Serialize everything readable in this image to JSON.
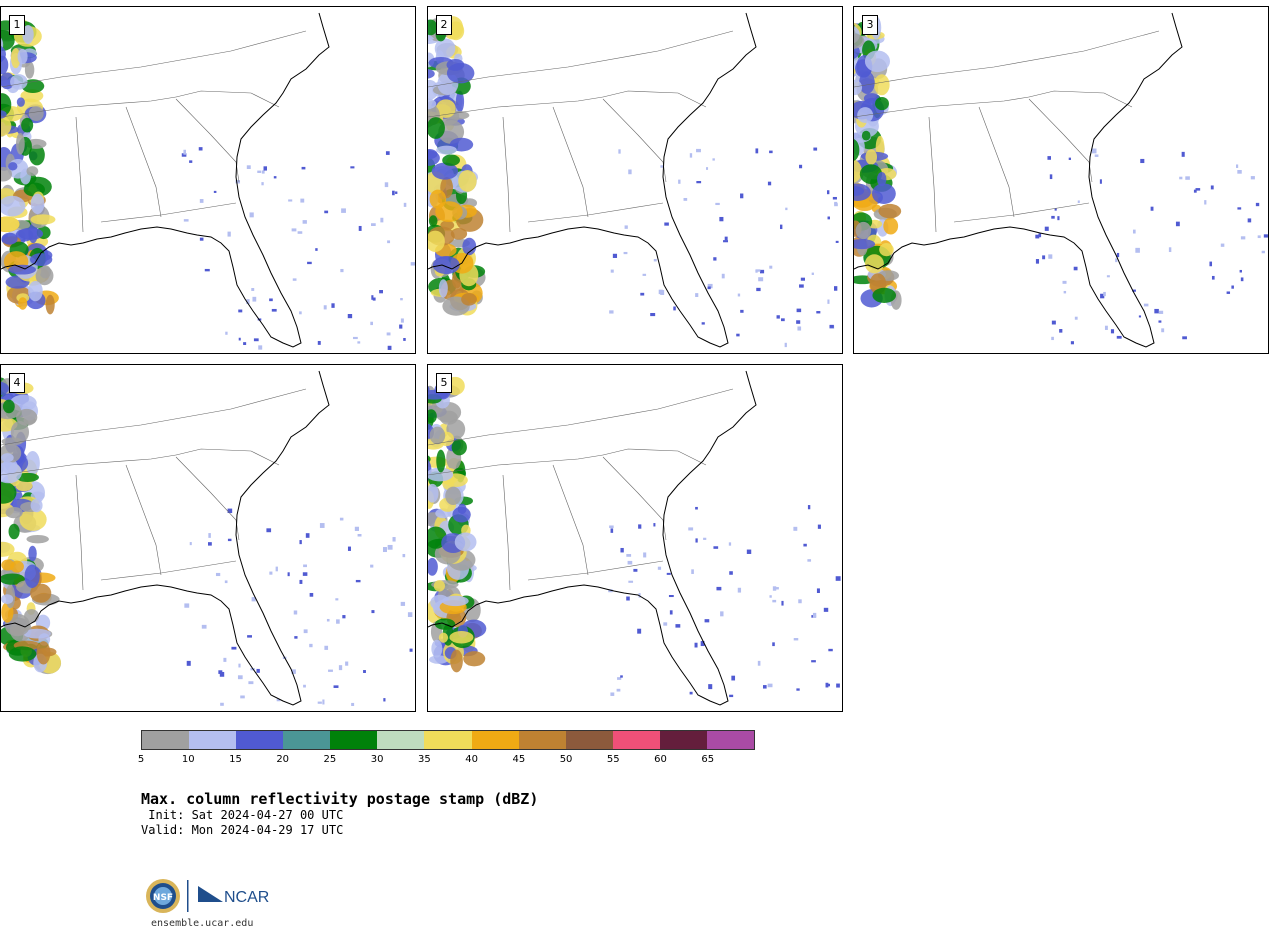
{
  "panels": [
    {
      "label": "1"
    },
    {
      "label": "2"
    },
    {
      "label": "3"
    },
    {
      "label": "4"
    },
    {
      "label": "5"
    }
  ],
  "colorbar": {
    "colors": [
      "#a0a0a0",
      "#b4bef0",
      "#505ad2",
      "#4b9696",
      "#00820a",
      "#bedcbe",
      "#f0dc5a",
      "#f0aa14",
      "#be8232",
      "#8c5a3c",
      "#f05078",
      "#641e3c",
      "#aa4ba5"
    ],
    "ticks": [
      "5",
      "10",
      "15",
      "20",
      "25",
      "30",
      "35",
      "40",
      "45",
      "50",
      "55",
      "60",
      "65"
    ]
  },
  "title": {
    "main": "Max. column reflectivity postage stamp (dBZ)",
    "init": " Init: Sat 2024-04-27 00 UTC",
    "valid": "Valid: Mon 2024-04-29 17 UTC"
  },
  "footer": {
    "logo_text": "NCAR",
    "url": "ensemble.ucar.edu"
  }
}
